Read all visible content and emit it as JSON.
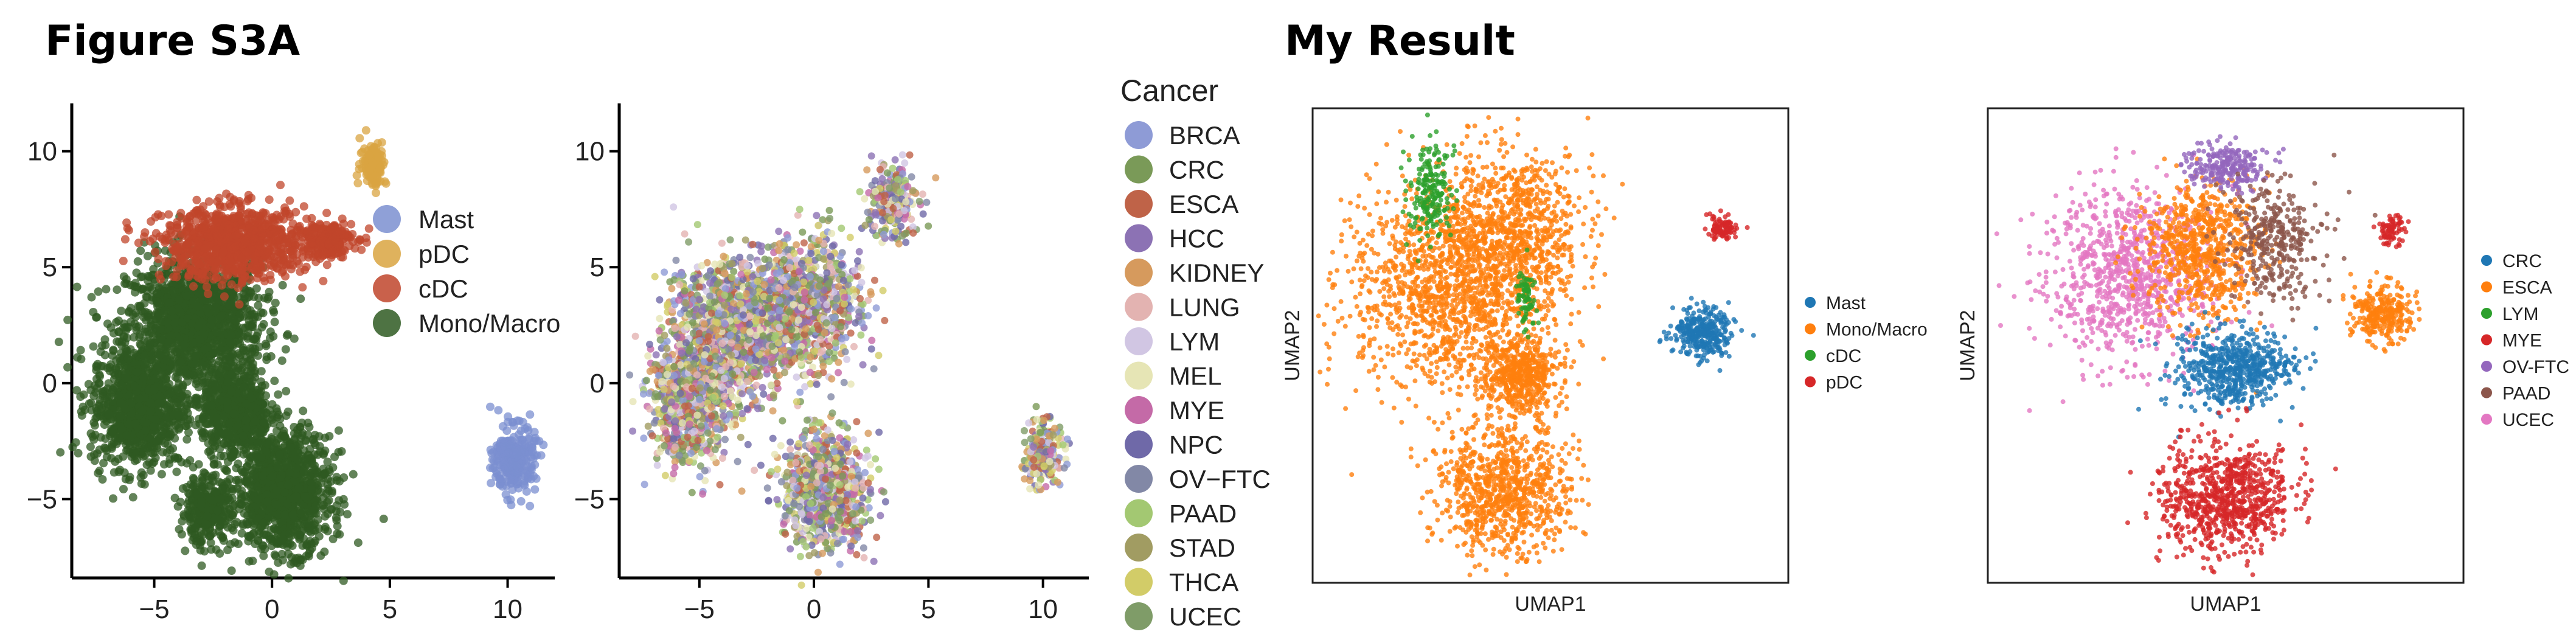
{
  "headings": {
    "left": "Figure S3A",
    "right": "My Result"
  },
  "chart_data": [
    {
      "type": "scatter",
      "title": "",
      "xlabel": "",
      "ylabel": "",
      "xlim": [
        -8.5,
        12
      ],
      "ylim": [
        -8.4,
        11.8
      ],
      "x_ticks": [
        -5,
        0,
        5,
        10
      ],
      "y_ticks": [
        -5,
        0,
        5,
        10
      ],
      "grid": false,
      "legend": {
        "title": "",
        "placement": "inside-right"
      },
      "series": [
        {
          "name": "Mast",
          "color": "#7b8fd0",
          "clusters": [
            {
              "cx": 10.3,
              "cy": -3.3,
              "rx": 0.8,
              "ry": 1.3,
              "n": 260
            }
          ]
        },
        {
          "name": "pDC",
          "color": "#d9a441",
          "clusters": [
            {
              "cx": 4.3,
              "cy": 9.5,
              "rx": 0.5,
              "ry": 0.9,
              "n": 120
            }
          ]
        },
        {
          "name": "cDC",
          "color": "#c0452b",
          "clusters": [
            {
              "cx": -1.5,
              "cy": 6.0,
              "rx": 2.8,
              "ry": 1.4,
              "n": 900
            },
            {
              "cx": 2.3,
              "cy": 6.2,
              "rx": 1.0,
              "ry": 0.7,
              "n": 200
            }
          ]
        },
        {
          "name": "Mono/Macro",
          "color": "#2f5a22",
          "clusters": [
            {
              "cx": -3.3,
              "cy": 2.5,
              "rx": 2.6,
              "ry": 2.6,
              "n": 1400
            },
            {
              "cx": -5.7,
              "cy": -1.0,
              "rx": 1.8,
              "ry": 2.4,
              "n": 900
            },
            {
              "cx": -1.5,
              "cy": -1.3,
              "rx": 1.3,
              "ry": 1.7,
              "n": 600
            },
            {
              "cx": 0.5,
              "cy": -4.7,
              "rx": 1.8,
              "ry": 2.3,
              "n": 1100
            },
            {
              "cx": -2.8,
              "cy": -5.5,
              "rx": 1.0,
              "ry": 1.3,
              "n": 300
            }
          ]
        }
      ]
    },
    {
      "type": "scatter",
      "title": "",
      "xlabel": "",
      "ylabel": "",
      "xlim": [
        -8.5,
        12
      ],
      "ylim": [
        -8.4,
        11.8
      ],
      "x_ticks": [
        -5,
        0,
        5,
        10
      ],
      "y_ticks": [
        -5,
        0,
        5,
        10
      ],
      "grid": false,
      "legend": {
        "title": "Cancer",
        "placement": "outside-right"
      },
      "series": [
        {
          "name": "BRCA",
          "color": "#8e9bd6"
        },
        {
          "name": "CRC",
          "color": "#7a9a58"
        },
        {
          "name": "ESCA",
          "color": "#bf6348"
        },
        {
          "name": "HCC",
          "color": "#8c72b4"
        },
        {
          "name": "KIDNEY",
          "color": "#d69a5d"
        },
        {
          "name": "LUNG",
          "color": "#e3b3b1"
        },
        {
          "name": "LYM",
          "color": "#d1c6e3"
        },
        {
          "name": "MEL",
          "color": "#e6e5b5"
        },
        {
          "name": "MYE",
          "color": "#c46aa7"
        },
        {
          "name": "NPC",
          "color": "#6f69a8"
        },
        {
          "name": "OV−FTC",
          "color": "#8288a6"
        },
        {
          "name": "PAAD",
          "color": "#a3c872"
        },
        {
          "name": "STAD",
          "color": "#a19c62"
        },
        {
          "name": "THCA",
          "color": "#d2cc68"
        },
        {
          "name": "UCEC",
          "color": "#7f9c68"
        }
      ]
    },
    {
      "type": "scatter",
      "title": "",
      "xlabel": "UMAP1",
      "ylabel": "UMAP2",
      "grid": false,
      "axis_ticks": false,
      "legend": {
        "title": "",
        "placement": "outside-right"
      },
      "series": [
        {
          "name": "Mast",
          "color": "#1f77b4"
        },
        {
          "name": "Mono/Macro",
          "color": "#ff7f0e"
        },
        {
          "name": "cDC",
          "color": "#2ca02c"
        },
        {
          "name": "pDC",
          "color": "#d62728"
        }
      ]
    },
    {
      "type": "scatter",
      "title": "",
      "xlabel": "UMAP1",
      "ylabel": "UMAP2",
      "grid": false,
      "axis_ticks": false,
      "legend": {
        "title": "",
        "placement": "outside-right"
      },
      "series": [
        {
          "name": "CRC",
          "color": "#1f77b4"
        },
        {
          "name": "ESCA",
          "color": "#ff7f0e"
        },
        {
          "name": "LYM",
          "color": "#2ca02c"
        },
        {
          "name": "MYE",
          "color": "#d62728"
        },
        {
          "name": "OV-FTC",
          "color": "#9467bd"
        },
        {
          "name": "PAAD",
          "color": "#8c564b"
        },
        {
          "name": "UCEC",
          "color": "#e377c2"
        }
      ]
    }
  ]
}
